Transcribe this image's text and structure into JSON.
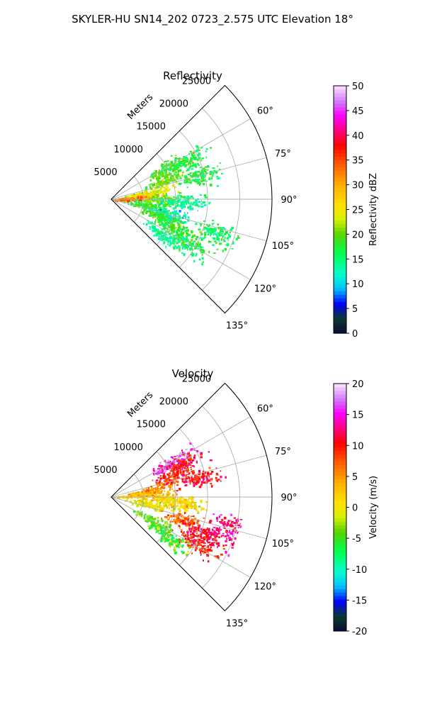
{
  "figure": {
    "title": "SKYLER-HU  SN14_202  0723_2.575 UTC Elevation 18°"
  },
  "chart_data": [
    {
      "type": "heatmap",
      "title": "Reflectivity",
      "range_label": "Meters",
      "range_ticks": [
        5000,
        10000,
        15000,
        20000,
        25000
      ],
      "rmax": 25000,
      "angle_ticks": [
        "60°",
        "75°",
        "90°",
        "105°",
        "120°",
        "135°"
      ],
      "angle_values": [
        60,
        75,
        90,
        105,
        120,
        135
      ],
      "sector_degrees": [
        45,
        135
      ],
      "colorbar": {
        "label": "Reflectivity dBZ",
        "ticks": [
          "0",
          "5",
          "10",
          "15",
          "20",
          "25",
          "30",
          "35",
          "40",
          "45",
          "50"
        ],
        "min": 0,
        "max": 50
      },
      "clusters": [
        {
          "angle": 60,
          "range": 10000,
          "value": 19
        },
        {
          "angle": 63,
          "range": 13000,
          "value": 17
        },
        {
          "angle": 70,
          "range": 9000,
          "value": 20
        },
        {
          "angle": 75,
          "range": 14000,
          "value": 17
        },
        {
          "angle": 80,
          "range": 6000,
          "value": 24
        },
        {
          "angle": 85,
          "range": 4000,
          "value": 27
        },
        {
          "angle": 88,
          "range": 2000,
          "value": 33
        },
        {
          "angle": 90,
          "range": 8000,
          "value": 20
        },
        {
          "angle": 92,
          "range": 11000,
          "value": 14
        },
        {
          "angle": 100,
          "range": 6000,
          "value": 18
        },
        {
          "angle": 105,
          "range": 9000,
          "value": 12
        },
        {
          "angle": 110,
          "range": 8000,
          "value": 19
        },
        {
          "angle": 115,
          "range": 11000,
          "value": 18
        },
        {
          "angle": 120,
          "range": 14000,
          "value": 17
        },
        {
          "angle": 125,
          "range": 10000,
          "value": 14
        },
        {
          "angle": 108,
          "range": 17000,
          "value": 16
        }
      ]
    },
    {
      "type": "heatmap",
      "title": "Velocity",
      "range_label": "Meters",
      "range_ticks": [
        5000,
        10000,
        15000,
        20000,
        25000
      ],
      "rmax": 25000,
      "angle_ticks": [
        "60°",
        "75°",
        "90°",
        "105°",
        "120°",
        "135°"
      ],
      "angle_values": [
        60,
        75,
        90,
        105,
        120,
        135
      ],
      "sector_degrees": [
        45,
        135
      ],
      "colorbar": {
        "label": "Velocity (m/s)",
        "ticks": [
          "-20",
          "-15",
          "-10",
          "-5",
          "0",
          "5",
          "10",
          "15",
          "20"
        ],
        "min": -20,
        "max": 20
      },
      "clusters": [
        {
          "angle": 60,
          "range": 11000,
          "value": 15
        },
        {
          "angle": 65,
          "range": 12000,
          "value": 10
        },
        {
          "angle": 72,
          "range": 10000,
          "value": 9
        },
        {
          "angle": 78,
          "range": 14000,
          "value": 11
        },
        {
          "angle": 80,
          "range": 6000,
          "value": 5
        },
        {
          "angle": 85,
          "range": 4000,
          "value": 3
        },
        {
          "angle": 90,
          "range": 8000,
          "value": 2
        },
        {
          "angle": 95,
          "range": 11000,
          "value": 1
        },
        {
          "angle": 100,
          "range": 6000,
          "value": 0
        },
        {
          "angle": 108,
          "range": 12000,
          "value": 7
        },
        {
          "angle": 112,
          "range": 16000,
          "value": 12
        },
        {
          "angle": 118,
          "range": 15000,
          "value": 10
        },
        {
          "angle": 120,
          "range": 8000,
          "value": -4
        },
        {
          "angle": 125,
          "range": 11000,
          "value": -5
        },
        {
          "angle": 104,
          "range": 19000,
          "value": 13
        }
      ]
    }
  ]
}
